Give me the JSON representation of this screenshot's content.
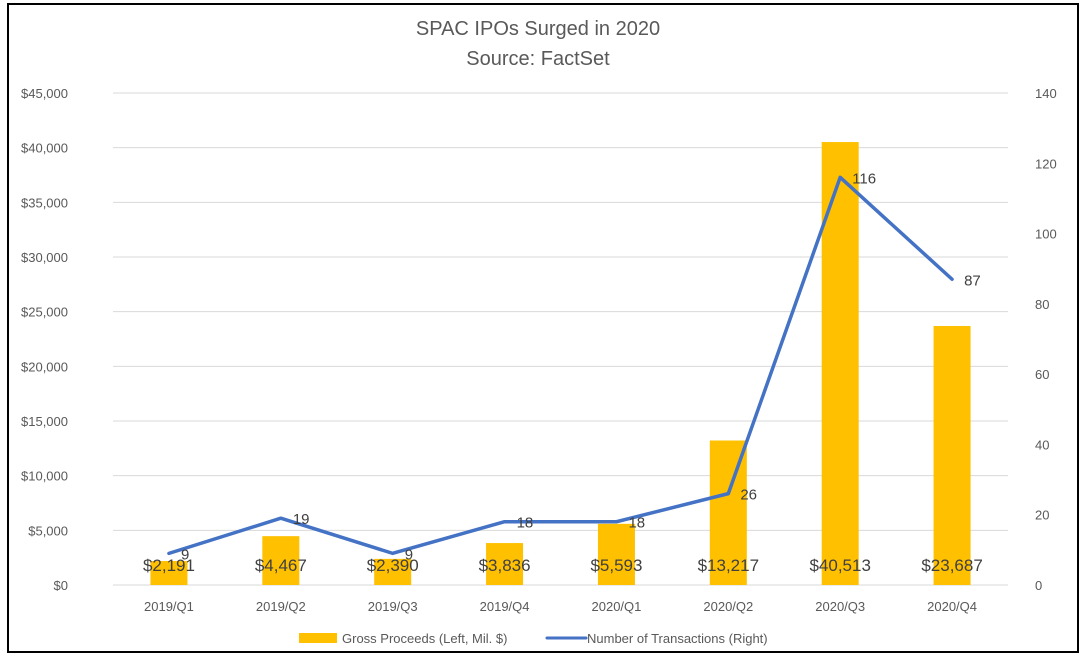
{
  "chart_data": {
    "type": "bar+line",
    "title": "SPAC IPOs Surged in 2020",
    "subtitle": "Source: FactSet",
    "categories": [
      "2019/Q1",
      "2019/Q2",
      "2019/Q3",
      "2019/Q4",
      "2020/Q1",
      "2020/Q2",
      "2020/Q3",
      "2020/Q4"
    ],
    "series": [
      {
        "name": "Gross Proceeds (Left, Mil. $)",
        "type": "bar",
        "axis": "left",
        "color": "#FFC000",
        "values": [
          2191,
          4467,
          2390,
          3836,
          5593,
          13217,
          40513,
          23687
        ],
        "labels": [
          "$2,191",
          "$4,467",
          "$2,390",
          "$3,836",
          "$5,593",
          "$13,217",
          "$40,513",
          "$23,687"
        ]
      },
      {
        "name": "Number of Transactions (Right)",
        "type": "line",
        "axis": "right",
        "color": "#4472C4",
        "values": [
          9,
          19,
          9,
          18,
          18,
          26,
          116,
          87
        ],
        "labels": [
          "9",
          "19",
          "9",
          "18",
          "18",
          "26",
          "116",
          "87"
        ]
      }
    ],
    "y_left": {
      "label": "",
      "range": [
        0,
        45000
      ],
      "ticks": [
        0,
        5000,
        10000,
        15000,
        20000,
        25000,
        30000,
        35000,
        40000,
        45000
      ],
      "tick_labels": [
        "$0",
        "$5,000",
        "$10,000",
        "$15,000",
        "$20,000",
        "$25,000",
        "$30,000",
        "$35,000",
        "$40,000",
        "$45,000"
      ]
    },
    "y_right": {
      "label": "",
      "range": [
        0,
        140
      ],
      "ticks": [
        0,
        20,
        40,
        60,
        80,
        100,
        120,
        140
      ],
      "tick_labels": [
        "0",
        "20",
        "40",
        "60",
        "80",
        "100",
        "120",
        "140"
      ]
    },
    "xlabel": "",
    "grid": true,
    "legend": {
      "position": "bottom",
      "entries": [
        "Gross Proceeds (Left, Mil. $)",
        "Number of Transactions (Right)"
      ]
    },
    "colors": {
      "grid": "#D9D9D9",
      "text": "#595959",
      "label": "#404040"
    }
  }
}
